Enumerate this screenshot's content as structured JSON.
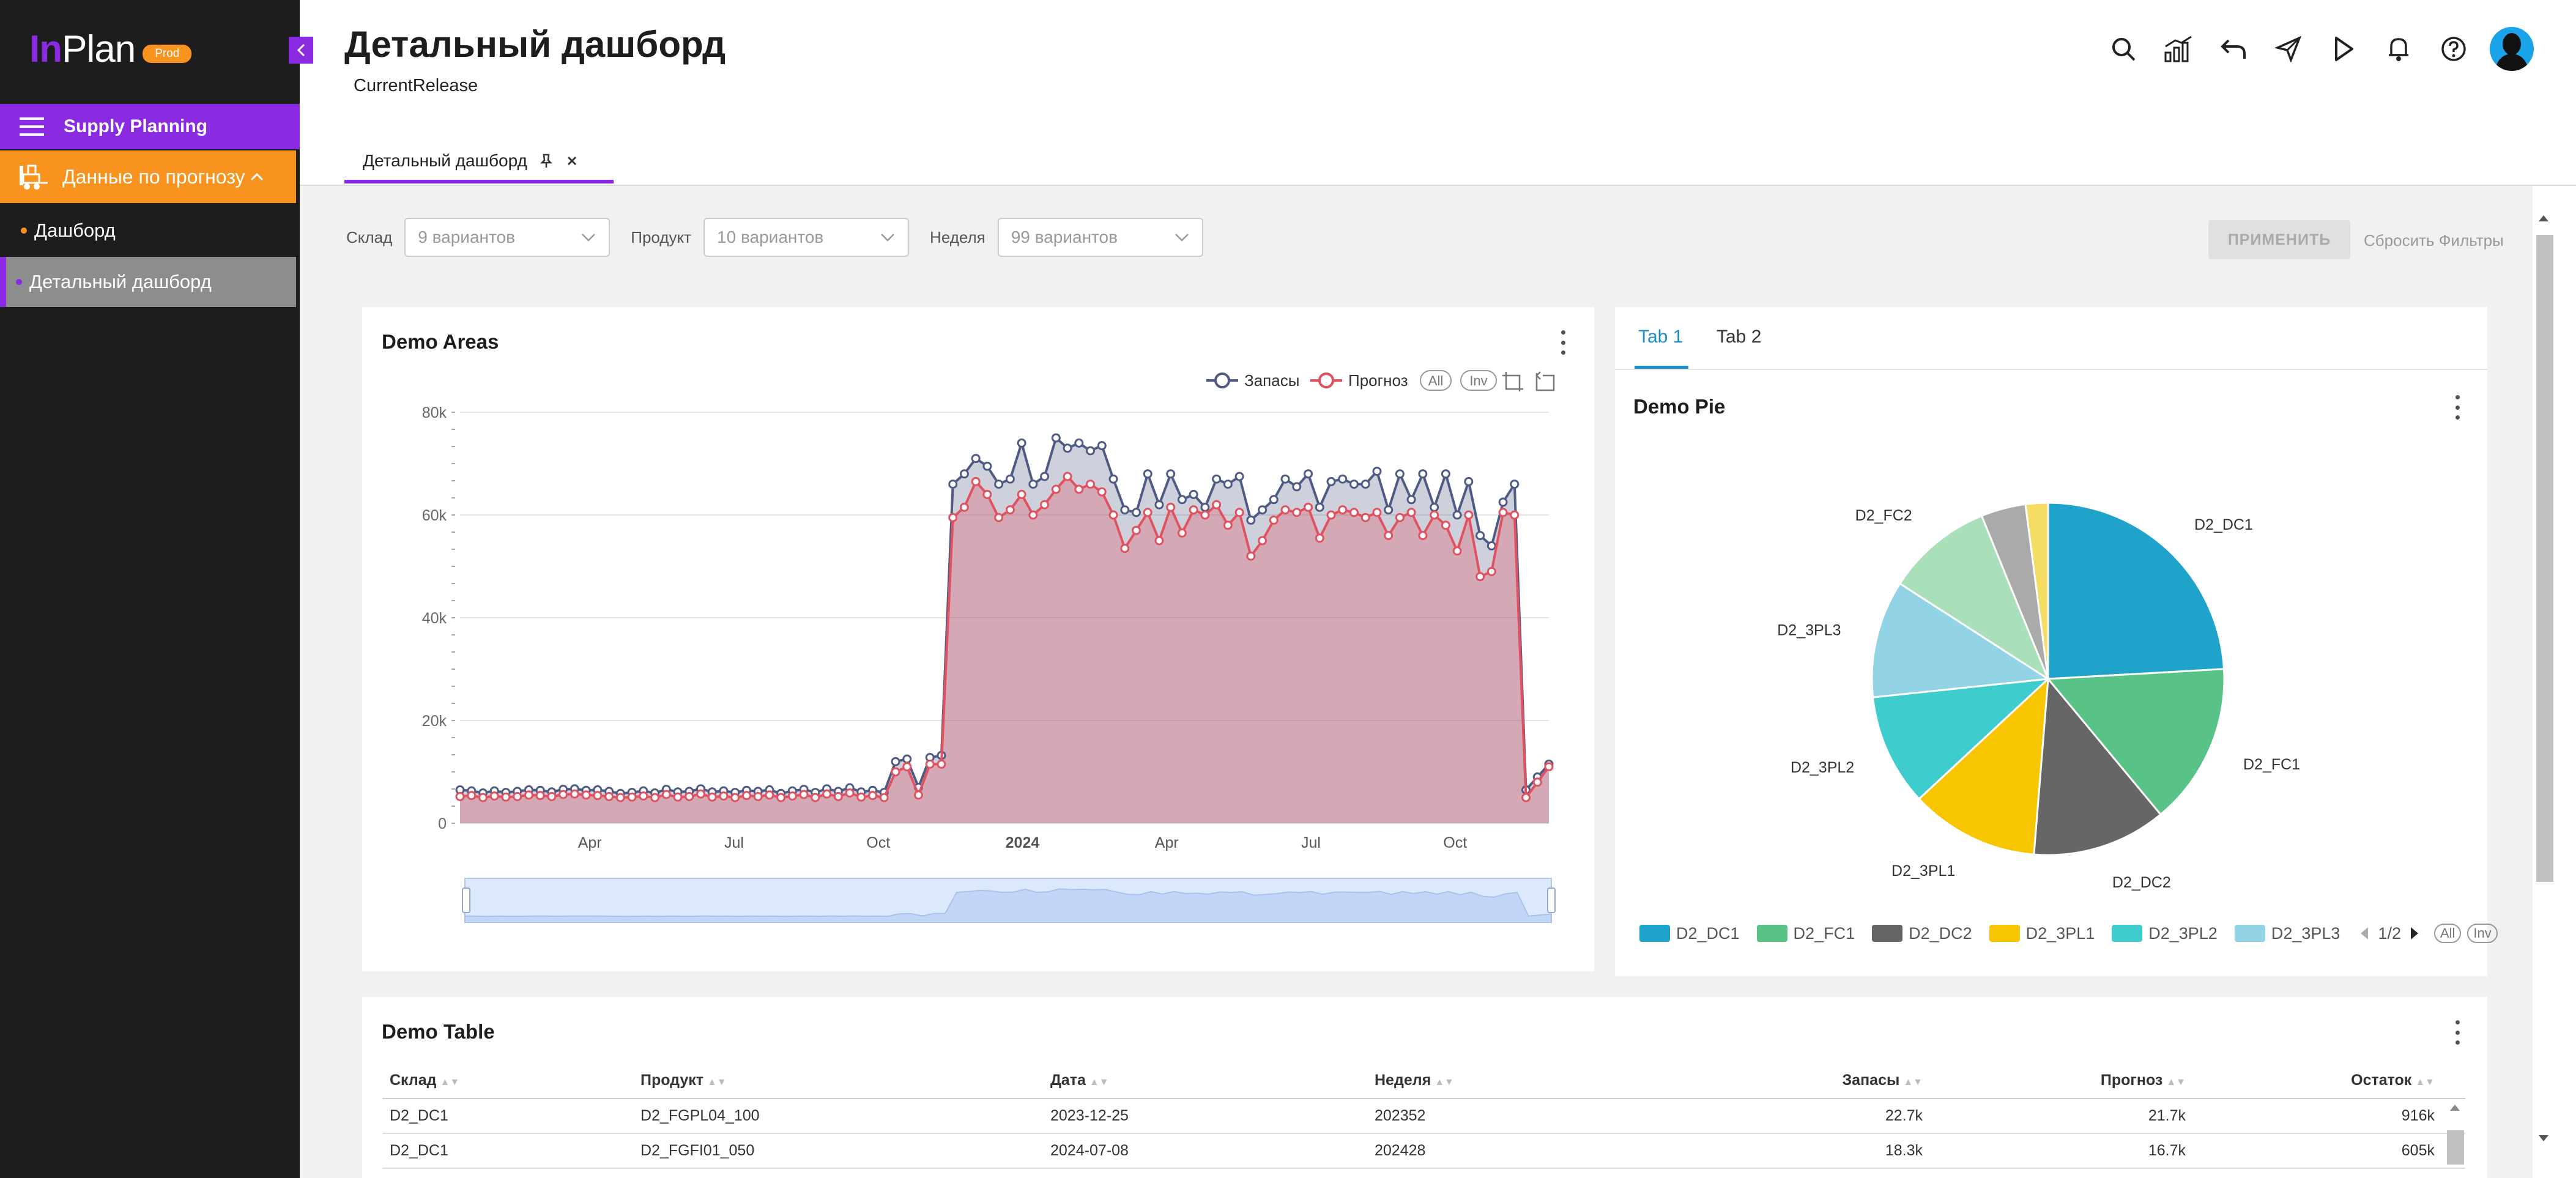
{
  "app": {
    "logo_prefix": "In",
    "logo_suffix": "Plan",
    "env_badge": "Prod"
  },
  "sidebar": {
    "module_label": "Supply Planning",
    "section_label": "Данные по прогнозу",
    "items": [
      {
        "label": "Дашборд"
      },
      {
        "label": "Детальный дашборд"
      }
    ]
  },
  "header": {
    "title": "Детальный дашборд",
    "release": "CurrentRelease"
  },
  "tabs": [
    {
      "label": "Детальный дашборд"
    }
  ],
  "filters": {
    "warehouse_label": "Склад",
    "warehouse_value": "9 вариантов",
    "product_label": "Продукт",
    "product_value": "10 вариантов",
    "week_label": "Неделя",
    "week_value": "99 вариантов",
    "apply_label": "ПРИМЕНИТЬ",
    "reset_label": "Сбросить Фильтры"
  },
  "area_card": {
    "title": "Demo Areas",
    "legend_all": "All",
    "legend_inv": "Inv"
  },
  "right_card": {
    "tabs": [
      "Tab 1",
      "Tab 2"
    ],
    "pie_title": "Demo Pie",
    "page_indicator": "1/2",
    "legend_all": "All",
    "legend_inv": "Inv"
  },
  "table": {
    "title": "Demo Table",
    "columns": [
      "Склад",
      "Продукт",
      "Дата",
      "Неделя",
      "Запасы",
      "Прогноз",
      "Остаток"
    ],
    "rows": [
      [
        "D2_DC1",
        "D2_FGPL04_100",
        "2023-12-25",
        "202352",
        "22.7k",
        "21.7k",
        "916k"
      ],
      [
        "D2_DC1",
        "D2_FGFI01_050",
        "2024-07-08",
        "202428",
        "18.3k",
        "16.7k",
        "605k"
      ]
    ]
  },
  "chart_data": [
    {
      "type": "area",
      "title": "Demo Areas",
      "y_ticks": [
        "0",
        "20k",
        "40k",
        "60k",
        "80k"
      ],
      "ylim": [
        0,
        80000
      ],
      "x_ticks": [
        "Apr",
        "Jul",
        "Oct",
        "2024",
        "Apr",
        "Jul",
        "Oct"
      ],
      "legend_placement": "top-right",
      "series": [
        {
          "name": "Запасы",
          "color": "#4f5b83",
          "values": [
            6500,
            6300,
            5900,
            6300,
            6000,
            6200,
            6500,
            6400,
            6100,
            6600,
            6700,
            6400,
            6500,
            6200,
            5800,
            6000,
            6300,
            5900,
            6600,
            6100,
            6200,
            6700,
            6100,
            6300,
            6000,
            6400,
            6200,
            6500,
            5800,
            6300,
            6600,
            6000,
            6700,
            6200,
            6900,
            6100,
            6400,
            6000,
            12000,
            12500,
            7000,
            12800,
            13200,
            66000,
            68000,
            71000,
            69500,
            66000,
            67000,
            74000,
            66000,
            67500,
            75000,
            73000,
            74000,
            72500,
            73500,
            67000,
            61000,
            60500,
            68000,
            62000,
            68000,
            63000,
            64000,
            61500,
            67000,
            66000,
            67500,
            59000,
            61000,
            63000,
            67000,
            65500,
            68000,
            61500,
            66500,
            67000,
            66000,
            66000,
            68500,
            61000,
            68000,
            63000,
            68000,
            61500,
            68000,
            60000,
            66500,
            56000,
            54000,
            62500,
            66000,
            6500,
            9000,
            11500
          ]
        },
        {
          "name": "Прогноз",
          "color": "#e05260",
          "values": [
            5200,
            5400,
            5000,
            5300,
            5100,
            5200,
            5500,
            5400,
            5200,
            5600,
            5700,
            5500,
            5400,
            5200,
            5000,
            5100,
            5300,
            5000,
            5600,
            5100,
            5200,
            5700,
            5100,
            5300,
            5000,
            5400,
            5200,
            5500,
            5000,
            5300,
            5600,
            5000,
            5700,
            5200,
            5900,
            5100,
            5400,
            5000,
            10000,
            11000,
            5500,
            11500,
            11500,
            59500,
            61500,
            66500,
            64000,
            59500,
            61000,
            64000,
            60000,
            62000,
            65000,
            67500,
            65000,
            66000,
            64500,
            60000,
            53500,
            57000,
            60500,
            55000,
            61500,
            56500,
            61000,
            60000,
            62000,
            58000,
            60500,
            52000,
            55000,
            59000,
            61000,
            60500,
            61500,
            55500,
            60000,
            61000,
            60500,
            59500,
            60500,
            56000,
            59500,
            60500,
            56000,
            60000,
            58000,
            53000,
            60000,
            48000,
            49000,
            60500,
            60000,
            5000,
            8000,
            11000
          ]
        }
      ]
    },
    {
      "type": "pie",
      "title": "Demo Pie",
      "categories": [
        "D2_DC1",
        "D2_FC1",
        "D2_DC2",
        "D2_3PL1",
        "D2_3PL2",
        "D2_3PL3",
        "D2_FC2",
        "",
        ""
      ],
      "values": [
        23.5,
        14.5,
        12,
        11.5,
        10,
        10.5,
        9.5,
        4,
        2
      ],
      "colors": [
        "#1fa3cb",
        "#59c287",
        "#666666",
        "#f7c600",
        "#3fcccc",
        "#92d3e6",
        "#a9dfb9",
        "#aaaaaa",
        "#f5dd63"
      ],
      "legend_placement": "bottom"
    }
  ]
}
